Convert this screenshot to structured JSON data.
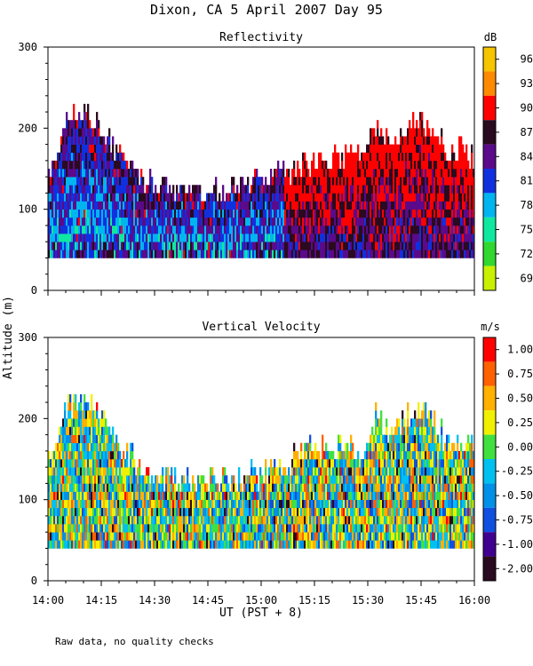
{
  "page_title": "Dixon, CA  5 April 2007  Day  95",
  "footnote": "Raw data, no quality checks",
  "shared_ylabel": "Altitude (m)",
  "shared_xlabel": "UT  (PST + 8)",
  "chart_data": [
    {
      "type": "heatmap",
      "title": "Reflectivity",
      "unit": "dB",
      "ylabel": "Altitude (m)",
      "xlabel": "UT  (PST + 8)",
      "x_ticks": [
        "14:00",
        "14:15",
        "14:30",
        "14:45",
        "15:00",
        "15:15",
        "15:30",
        "15:45",
        "16:00"
      ],
      "y_ticks": [
        0,
        100,
        200,
        300
      ],
      "ylim": [
        0,
        300
      ],
      "xlim": [
        "14:00",
        "16:00"
      ],
      "colorbar": {
        "labels": [
          "96",
          "93",
          "90",
          "87",
          "84",
          "81",
          "78",
          "75",
          "72",
          "69"
        ],
        "colors": [
          "#f7c400",
          "#ff8a00",
          "#ff0000",
          "#2a0a1e",
          "#5a0a8a",
          "#1030e0",
          "#00b4f0",
          "#10e8a0",
          "#30d830",
          "#c8f000"
        ]
      },
      "data_bottom_m": 40,
      "top_envelope": {
        "times": [
          "14:00",
          "14:05",
          "14:10",
          "14:15",
          "14:20",
          "14:25",
          "14:30",
          "14:40",
          "14:50",
          "15:00",
          "15:10",
          "15:15",
          "15:20",
          "15:28",
          "15:32",
          "15:37",
          "15:42",
          "15:47",
          "15:52",
          "15:57",
          "16:00"
        ],
        "altitudes_m": [
          150,
          210,
          220,
          200,
          160,
          140,
          130,
          120,
          120,
          130,
          150,
          160,
          160,
          160,
          200,
          180,
          210,
          200,
          170,
          170,
          160
        ]
      }
    },
    {
      "type": "heatmap",
      "title": "Vertical Velocity",
      "unit": "m/s",
      "ylabel": "Altitude (m)",
      "xlabel": "UT  (PST + 8)",
      "x_ticks": [
        "14:00",
        "14:15",
        "14:30",
        "14:45",
        "15:00",
        "15:15",
        "15:30",
        "15:45",
        "16:00"
      ],
      "y_ticks": [
        0,
        100,
        200,
        300
      ],
      "ylim": [
        0,
        300
      ],
      "xlim": [
        "14:00",
        "16:00"
      ],
      "colorbar": {
        "labels": [
          "1.00",
          "0.75",
          "0.50",
          "0.25",
          "0.00",
          "-0.25",
          "-0.50",
          "-0.75",
          "-1.00",
          "-2.00"
        ],
        "colors": [
          "#ff0000",
          "#ff6000",
          "#ffb000",
          "#f0f000",
          "#40e040",
          "#00c0f0",
          "#0090e8",
          "#1050e0",
          "#400090",
          "#2a0a1e"
        ]
      },
      "data_bottom_m": 40,
      "top_envelope": {
        "times": [
          "14:00",
          "14:05",
          "14:10",
          "14:15",
          "14:20",
          "14:25",
          "14:30",
          "14:40",
          "14:50",
          "15:00",
          "15:10",
          "15:15",
          "15:20",
          "15:28",
          "15:32",
          "15:37",
          "15:42",
          "15:47",
          "15:52",
          "15:57",
          "16:00"
        ],
        "altitudes_m": [
          150,
          210,
          220,
          200,
          160,
          140,
          130,
          120,
          120,
          130,
          150,
          160,
          160,
          160,
          200,
          180,
          210,
          200,
          170,
          170,
          160
        ]
      }
    }
  ]
}
